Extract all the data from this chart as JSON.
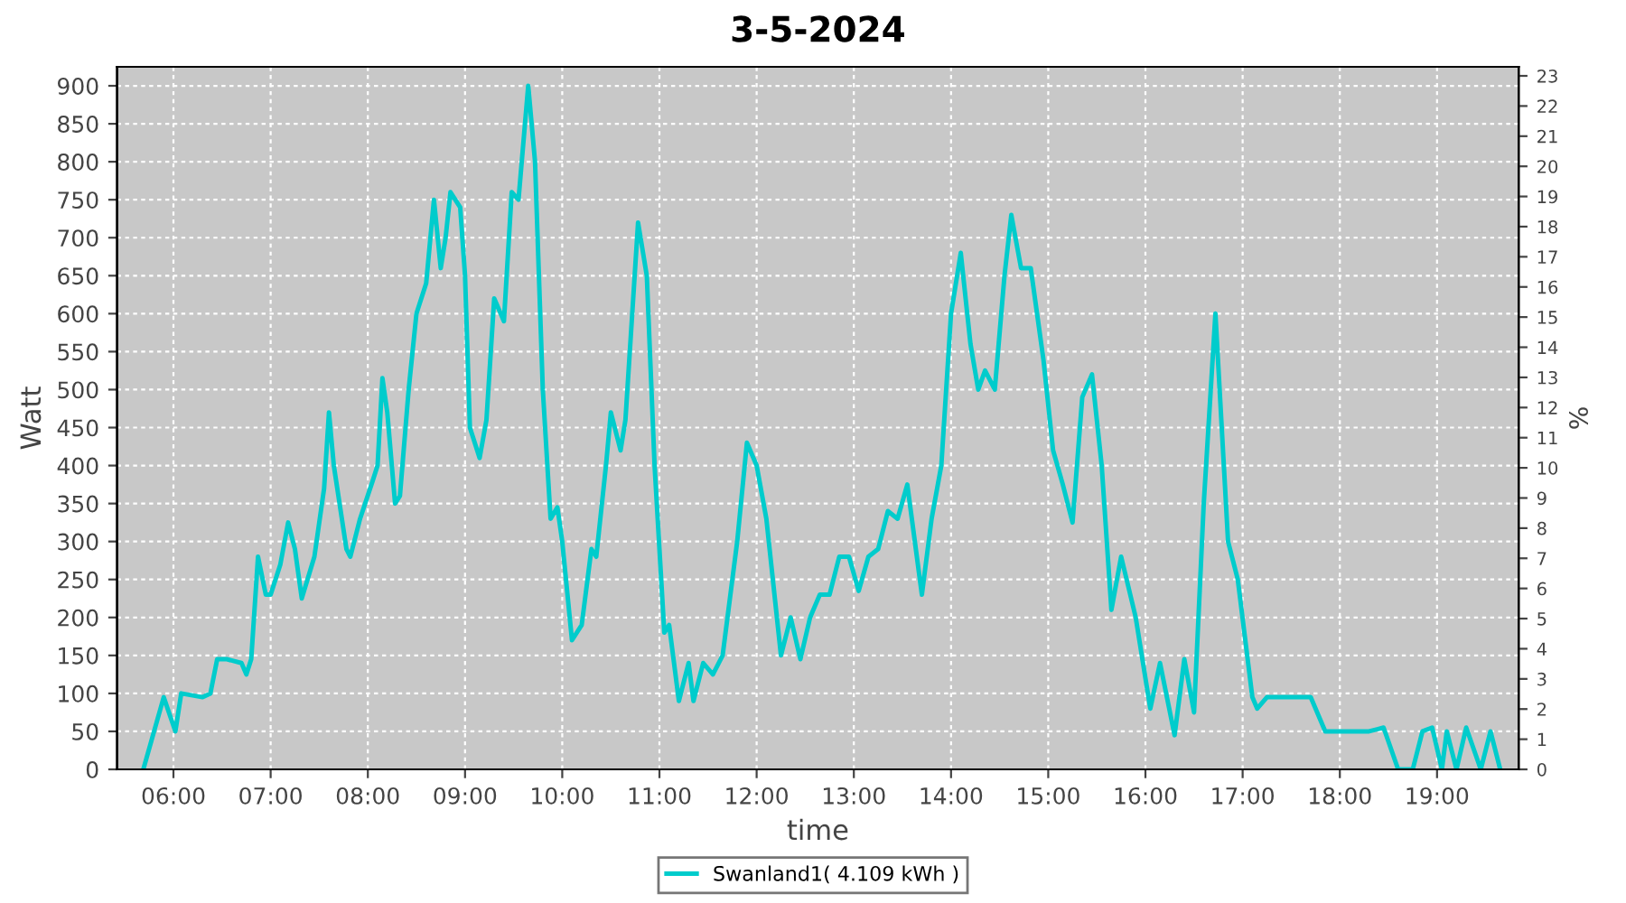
{
  "chart_data": {
    "type": "line",
    "title": "3-5-2024",
    "xlabel": "time",
    "ylabel": "Watt",
    "y2label": "%",
    "series": [
      {
        "name": "Swanland1( 4.109 kWh )",
        "color": "#00cccc",
        "x": [
          5.69,
          5.9,
          6.02,
          6.08,
          6.3,
          6.38,
          6.45,
          6.55,
          6.7,
          6.75,
          6.8,
          6.87,
          6.95,
          7.0,
          7.1,
          7.18,
          7.25,
          7.32,
          7.45,
          7.55,
          7.6,
          7.65,
          7.78,
          7.82,
          7.92,
          8.05,
          8.1,
          8.15,
          8.2,
          8.28,
          8.33,
          8.42,
          8.5,
          8.6,
          8.68,
          8.75,
          8.8,
          8.85,
          8.95,
          9.0,
          9.05,
          9.15,
          9.22,
          9.3,
          9.4,
          9.48,
          9.55,
          9.65,
          9.72,
          9.8,
          9.88,
          9.95,
          10.0,
          10.1,
          10.2,
          10.3,
          10.35,
          10.45,
          10.5,
          10.6,
          10.65,
          10.72,
          10.78,
          10.87,
          10.95,
          11.05,
          11.1,
          11.2,
          11.3,
          11.35,
          11.45,
          11.55,
          11.65,
          11.8,
          11.9,
          12.0,
          12.1,
          12.25,
          12.35,
          12.45,
          12.55,
          12.65,
          12.75,
          12.85,
          12.95,
          13.05,
          13.15,
          13.25,
          13.35,
          13.45,
          13.55,
          13.7,
          13.8,
          13.9,
          14.0,
          14.1,
          14.2,
          14.28,
          14.35,
          14.45,
          14.55,
          14.62,
          14.72,
          14.82,
          14.95,
          15.05,
          15.15,
          15.25,
          15.35,
          15.45,
          15.55,
          15.65,
          15.75,
          15.9,
          16.05,
          16.15,
          16.3,
          16.4,
          16.5,
          16.6,
          16.72,
          16.85,
          16.95,
          17.1,
          17.15,
          17.25,
          17.7,
          17.85,
          18.3,
          18.45,
          18.6,
          18.75,
          18.85,
          18.95,
          19.05,
          19.1,
          19.2,
          19.3,
          19.45,
          19.55,
          19.65
        ],
        "values": [
          0,
          95,
          50,
          100,
          95,
          100,
          145,
          145,
          140,
          125,
          145,
          280,
          230,
          230,
          270,
          325,
          290,
          225,
          280,
          370,
          470,
          400,
          290,
          280,
          330,
          380,
          400,
          515,
          470,
          350,
          360,
          500,
          600,
          640,
          750,
          660,
          700,
          760,
          740,
          650,
          450,
          410,
          460,
          620,
          590,
          760,
          750,
          900,
          800,
          500,
          330,
          345,
          300,
          170,
          190,
          290,
          280,
          400,
          470,
          420,
          460,
          600,
          720,
          650,
          400,
          180,
          190,
          90,
          140,
          90,
          140,
          125,
          150,
          300,
          430,
          400,
          330,
          150,
          200,
          145,
          200,
          230,
          230,
          280,
          280,
          235,
          280,
          290,
          340,
          330,
          375,
          230,
          330,
          400,
          600,
          680,
          560,
          500,
          525,
          500,
          650,
          730,
          660,
          660,
          540,
          420,
          375,
          325,
          490,
          520,
          400,
          210,
          280,
          200,
          80,
          140,
          45,
          145,
          75,
          350,
          600,
          300,
          250,
          95,
          80,
          95,
          95,
          50,
          50,
          55,
          0,
          0,
          50,
          55,
          0,
          50,
          0,
          55,
          0,
          50,
          0
        ]
      }
    ],
    "xlim": [
      5.42,
      19.84
    ],
    "xticks": [
      {
        "value": 6,
        "label": "06:00"
      },
      {
        "value": 7,
        "label": "07:00"
      },
      {
        "value": 8,
        "label": "08:00"
      },
      {
        "value": 9,
        "label": "09:00"
      },
      {
        "value": 10,
        "label": "10:00"
      },
      {
        "value": 11,
        "label": "11:00"
      },
      {
        "value": 12,
        "label": "12:00"
      },
      {
        "value": 13,
        "label": "13:00"
      },
      {
        "value": 14,
        "label": "14:00"
      },
      {
        "value": 15,
        "label": "15:00"
      },
      {
        "value": 16,
        "label": "16:00"
      },
      {
        "value": 17,
        "label": "17:00"
      },
      {
        "value": 18,
        "label": "18:00"
      },
      {
        "value": 19,
        "label": "19:00"
      }
    ],
    "ylim": [
      0,
      925
    ],
    "yticks": [
      0,
      50,
      100,
      150,
      200,
      250,
      300,
      350,
      400,
      450,
      500,
      550,
      600,
      650,
      700,
      750,
      800,
      850,
      900
    ],
    "y2lim": [
      0,
      23.3
    ],
    "y2ticks": [
      0,
      1,
      2,
      3,
      4,
      5,
      6,
      7,
      8,
      9,
      10,
      11,
      12,
      13,
      14,
      15,
      16,
      17,
      18,
      19,
      20,
      21,
      22,
      23
    ],
    "grid": true,
    "legend": "bottom",
    "marker": "none",
    "line_style": "solid"
  }
}
